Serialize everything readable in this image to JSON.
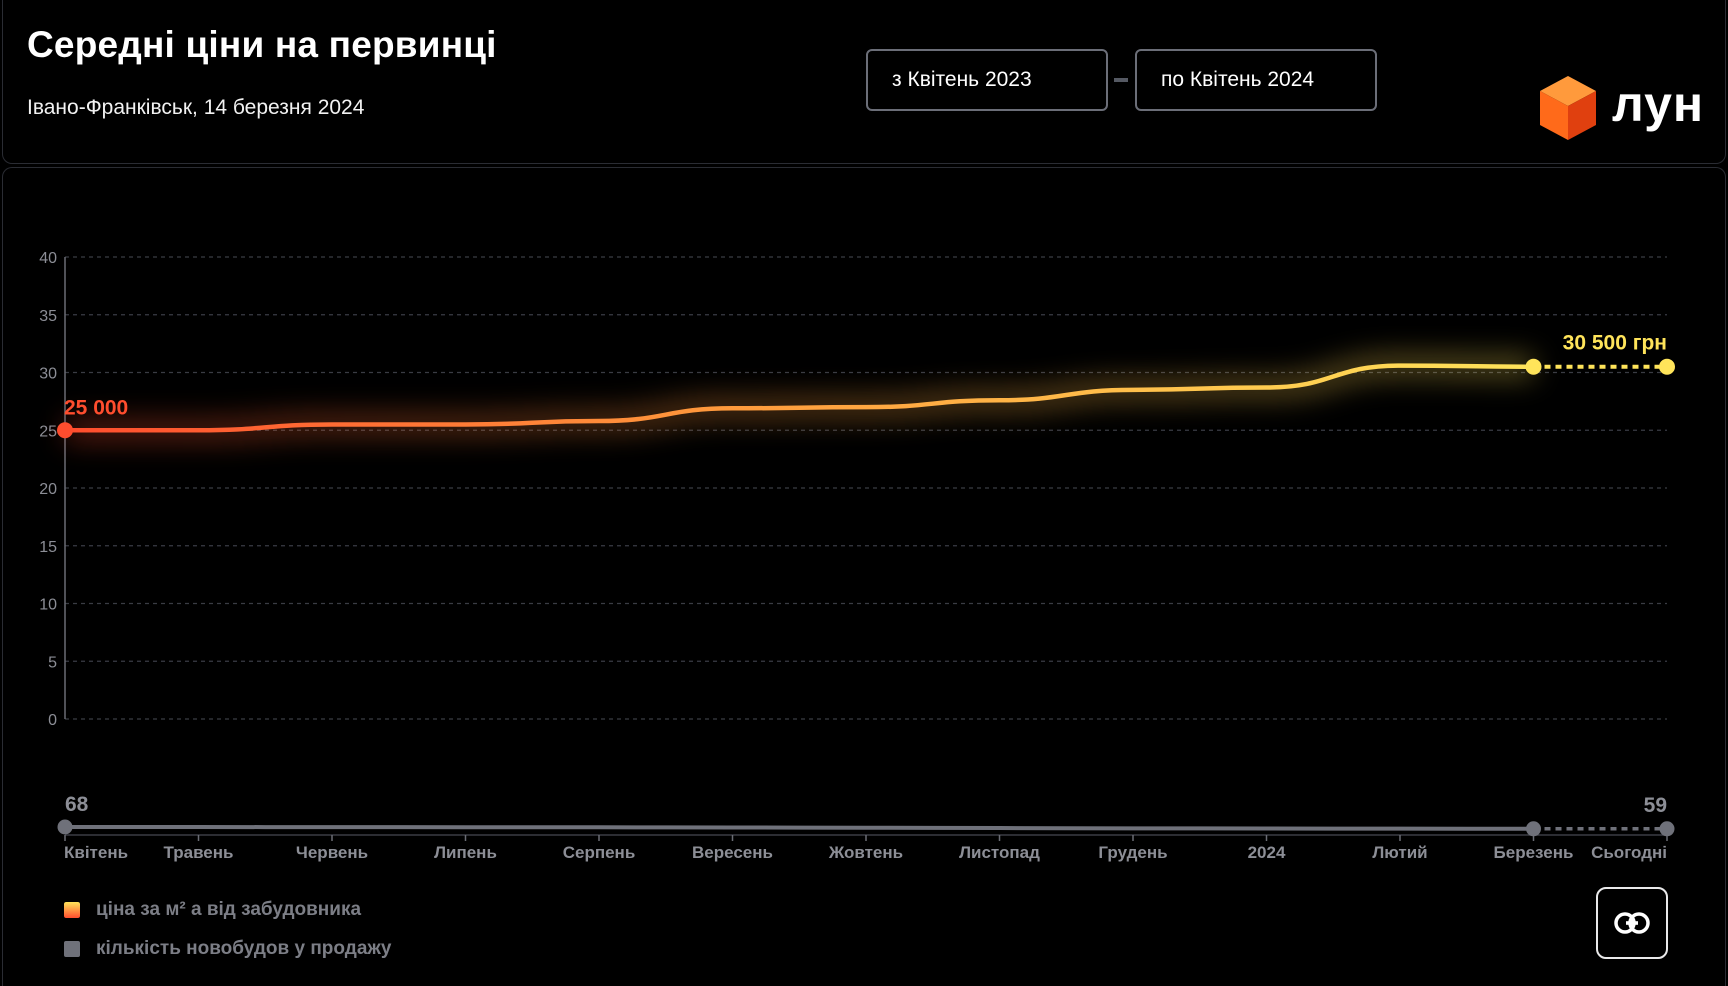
{
  "header": {
    "title": "Середні ціни на первинці",
    "subtitle": "Івано-Франківськ, 14 березня 2024",
    "date_from": "з Квітень 2023",
    "date_to": "по Квітень 2024",
    "logo_text": "лун"
  },
  "legend": {
    "price_label": "ціна за м² a від забудовника",
    "count_label": "кількість новобудов у продажу"
  },
  "colors": {
    "price_start": "#ff4d2e",
    "price_end": "#ffe45a",
    "count": "#6f717a",
    "grid": "#3a3c44",
    "logo_cube": "#ff6a1a"
  },
  "icons": {
    "link": "link-icon",
    "logo": "cube-logo-icon"
  },
  "chart_data": {
    "type": "line",
    "categories": [
      "Квітень",
      "Травень",
      "Червень",
      "Липень",
      "Серпень",
      "Вересень",
      "Жовтень",
      "Листопад",
      "Грудень",
      "2024",
      "Лютий",
      "Березень",
      "Сьогодні"
    ],
    "y_ticks": [
      0,
      5,
      10,
      15,
      20,
      25,
      30,
      35,
      40
    ],
    "ylim": [
      0,
      40
    ],
    "grid": true,
    "series": [
      {
        "values": [
          25,
          25,
          25.5,
          25.5,
          25.8,
          26.9,
          27,
          27.6,
          28.5,
          28.7,
          30.6,
          30.5,
          30.5
        ],
        "projected_from_index": 11
      },
      {
        "values": [
          68,
          68,
          67.5,
          67.3,
          67,
          66.5,
          65.5,
          64.5,
          63.5,
          63,
          62.5,
          62,
          59
        ],
        "projected_from_index": 11
      }
    ],
    "annotations": {
      "price_start": "25 000",
      "price_end": "30 500 грн",
      "count_start": "68",
      "count_end": "59"
    }
  }
}
